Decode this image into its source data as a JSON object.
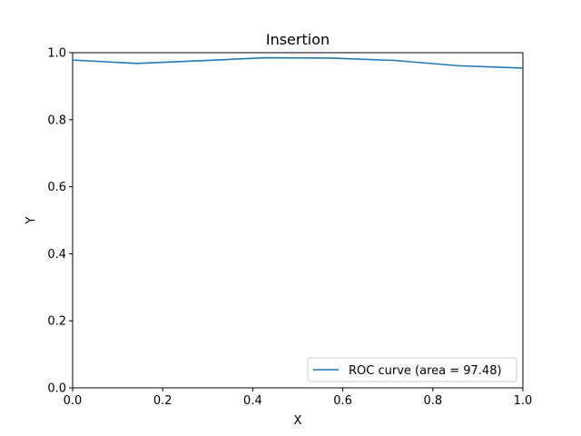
{
  "chart_data": {
    "type": "line",
    "title": "Insertion",
    "xlabel": "X",
    "ylabel": "Y",
    "xlim": [
      0,
      1
    ],
    "ylim": [
      0,
      1
    ],
    "xticks": [
      0.0,
      0.2,
      0.4,
      0.6,
      0.8,
      1.0
    ],
    "yticks": [
      0.0,
      0.2,
      0.4,
      0.6,
      0.8,
      1.0
    ],
    "xtick_labels": [
      "0.0",
      "0.2",
      "0.4",
      "0.6",
      "0.8",
      "1.0"
    ],
    "ytick_labels": [
      "0.0",
      "0.2",
      "0.4",
      "0.6",
      "0.8",
      "1.0"
    ],
    "grid": false,
    "legend_position": "lower-right",
    "series": [
      {
        "name": "ROC curve (area = 97.48)",
        "color": "#1f77b4",
        "x": [
          0.0,
          0.1429,
          0.2857,
          0.4286,
          0.5714,
          0.7143,
          0.8571,
          1.0
        ],
        "y": [
          0.978,
          0.968,
          0.976,
          0.985,
          0.984,
          0.977,
          0.961,
          0.954
        ]
      }
    ]
  }
}
